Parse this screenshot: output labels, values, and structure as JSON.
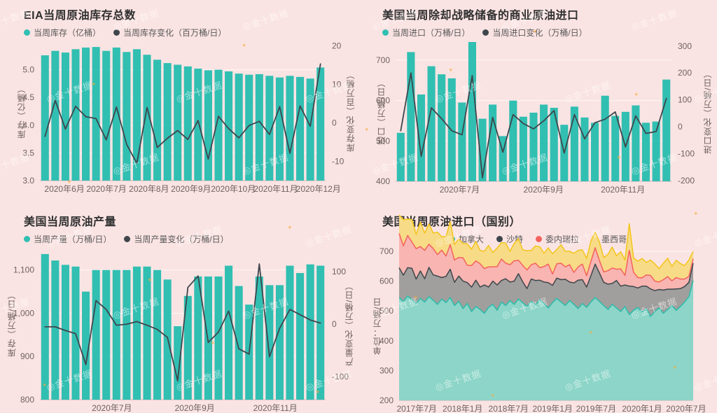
{
  "page": {
    "background": "#fae4e3",
    "watermark": {
      "logo": "◎",
      "text": "金十数据"
    }
  },
  "charts": [
    {
      "id": "eia-inventory",
      "title": "EIA当周原油库存总数",
      "legend": [
        {
          "label": "当周库存（亿桶）",
          "color": "#31bfb2"
        },
        {
          "label": "当周库存变化（百万桶/日）",
          "color": "#3e464c"
        }
      ],
      "chart_data": {
        "type": "bar+line",
        "bar_series": {
          "name": "当周库存（亿桶）",
          "values": [
            5.26,
            5.34,
            5.31,
            5.37,
            5.4,
            5.41,
            5.34,
            5.4,
            5.32,
            5.37,
            5.27,
            5.18,
            5.12,
            5.09,
            5.06,
            5.02,
            4.99,
            5.0,
            4.97,
            4.93,
            4.91,
            4.92,
            4.89,
            4.86,
            4.89,
            4.87,
            4.84,
            5.04
          ]
        },
        "line_series": {
          "name": "当周库存变化（百万桶/日）",
          "values": [
            -3.5,
            5.8,
            -1.6,
            4.3,
            1.6,
            1.1,
            -4.4,
            4.1,
            -5.6,
            -10.5,
            4.0,
            -6.4,
            -4.0,
            -2.0,
            -4.3,
            0.6,
            -9.4,
            1.7,
            -1.5,
            -3.9,
            -0.7,
            0.4,
            -3.0,
            4.2,
            -7.9,
            4.4,
            -0.9,
            15.3
          ]
        },
        "ylim": [
          3.0,
          5.5
        ],
        "yticks": [
          [
            3.0,
            "3.0"
          ],
          [
            3.5,
            "3.5"
          ],
          [
            4.0,
            "4.0"
          ],
          [
            4.5,
            "4.5"
          ],
          [
            5.0,
            "5.0"
          ]
        ],
        "y2lim": [
          -15,
          21
        ],
        "y2ticks": [
          [
            -10,
            "-10"
          ],
          [
            0,
            "0"
          ],
          [
            10,
            "10"
          ],
          [
            20,
            "20"
          ]
        ],
        "yaxis_title": "库存（亿桶）",
        "y2axis_title": "库存变化（百万桶）",
        "x_labels": [
          [
            0.086,
            "2020年6月"
          ],
          [
            0.233,
            "2020年7月"
          ],
          [
            0.382,
            "2020年8月"
          ],
          [
            0.529,
            "2020年9月"
          ],
          [
            0.677,
            "2020年10月"
          ],
          [
            0.826,
            "2020年11月"
          ],
          [
            0.975,
            "2020年12月"
          ]
        ]
      }
    },
    {
      "id": "commercial-imports",
      "title": "美国当周除却战略储备的商业原油进口",
      "legend": [
        {
          "label": "当周进口（万桶/日）",
          "color": "#31bfb2"
        },
        {
          "label": "当周进口变化（万桶/日）",
          "color": "#3e464c"
        }
      ],
      "chart_data": {
        "type": "bar+line",
        "bar_series": {
          "name": "当周进口（万桶/日）",
          "values": [
            520,
            720,
            615,
            685,
            665,
            655,
            595,
            745,
            555,
            590,
            512,
            600,
            560,
            570,
            590,
            582,
            540,
            585,
            558,
            545,
            612,
            562,
            572,
            588,
            545,
            548,
            652
          ]
        },
        "line_series": {
          "name": "当周进口变化（万桶/日）",
          "values": [
            -15,
            200,
            -110,
            70,
            30,
            -15,
            -30,
            190,
            -190,
            35,
            -95,
            45,
            12,
            -8,
            22,
            60,
            -98,
            45,
            -45,
            15,
            28,
            55,
            -75,
            40,
            -25,
            -18,
            105
          ]
        },
        "ylim": [
          400,
          745
        ],
        "yticks": [
          [
            400,
            "400"
          ],
          [
            500,
            "500"
          ],
          [
            600,
            "600"
          ],
          [
            700,
            "700"
          ]
        ],
        "y2lim": [
          -203,
          315
        ],
        "y2ticks": [
          [
            -200,
            "-200"
          ],
          [
            -100,
            "-100"
          ],
          [
            0,
            "0"
          ],
          [
            100,
            "100"
          ],
          [
            200,
            "200"
          ],
          [
            300,
            "300"
          ]
        ],
        "yaxis_title": "进口（万桶/日）",
        "y2axis_title": "进口变化（万桶/日）",
        "x_labels": [
          [
            0.232,
            "2020年7月"
          ],
          [
            0.536,
            "2020年9月"
          ],
          [
            0.824,
            "2020年11月"
          ]
        ]
      }
    },
    {
      "id": "crude-production",
      "title": "美国当周原油产量",
      "legend": [
        {
          "label": "当周产量（万桶/日）",
          "color": "#31bfb2"
        },
        {
          "label": "当周产量变化（万桶/日）",
          "color": "#3e464c"
        }
      ],
      "chart_data": {
        "type": "bar+line",
        "bar_series": {
          "name": "当周产量（万桶/日）",
          "values": [
            1137,
            1122,
            1112,
            1108,
            1050,
            1100,
            1100,
            1100,
            1100,
            1108,
            1108,
            1100,
            1078,
            970,
            1040,
            1085,
            1085,
            1085,
            1110,
            1063,
            1020,
            1085,
            1065,
            1065,
            1110,
            1093,
            1113,
            1110
          ]
        },
        "line_series": {
          "name": "当周产量变化（万桶/日）",
          "values": [
            -5,
            -5,
            -12,
            -18,
            -77,
            45,
            28,
            -2,
            0,
            5,
            -2,
            -10,
            -25,
            -108,
            70,
            92,
            -35,
            -15,
            25,
            -47,
            -57,
            115,
            -62,
            -8,
            28,
            18,
            8,
            2
          ]
        },
        "ylim": [
          800,
          1153
        ],
        "yticks": [
          [
            800,
            "800"
          ],
          [
            900,
            "900"
          ],
          [
            1000,
            "1,000"
          ],
          [
            1100,
            "1,100"
          ]
        ],
        "y2lim": [
          -144,
          147
        ],
        "y2ticks": [
          [
            -100,
            "-100"
          ],
          [
            0,
            "0"
          ],
          [
            100,
            "100"
          ]
        ],
        "yaxis_title": "库存（万桶/日）",
        "y2axis_title": "产量变化（万桶/日）",
        "x_labels": [
          [
            0.252,
            "2020年7月"
          ],
          [
            0.542,
            "2020年9月"
          ],
          [
            0.824,
            "2020年11月"
          ]
        ]
      }
    },
    {
      "id": "imports-by-country",
      "title": "美国当周原油进口（国别）",
      "legend": [
        {
          "label": "加拿大",
          "color": "#31bfb2"
        },
        {
          "label": "沙特",
          "color": "#3e464c"
        },
        {
          "label": "委内瑞拉",
          "color": "#f4625d"
        },
        {
          "label": "墨西哥",
          "color": "#f3c51b"
        }
      ],
      "chart_data": {
        "type": "stacked-area",
        "series": [
          {
            "name": "加拿大",
            "line": "#2bbcab",
            "fill": "#8cd5c8",
            "values": [
              345,
              332,
              350,
              338,
              325,
              342,
              330,
              348,
              336,
              322,
              340,
              328,
              345,
              318,
              332,
              308,
              325,
              298,
              315,
              305,
              292,
              312,
              322,
              302,
              330,
              318,
              335,
              322,
              340,
              328,
              315,
              332,
              320,
              338,
              325,
              310,
              328,
              342,
              330,
              318,
              335,
              322,
              308,
              325,
              312,
              330,
              345,
              332,
              318,
              305,
              322,
              310,
              298,
              315,
              288,
              302,
              312,
              295,
              308,
              282,
              298,
              310,
              292,
              305,
              318,
              302,
              315,
              330,
              348,
              402
            ]
          },
          {
            "name": "沙特",
            "line": "#3e464c",
            "fill": "#a19f9d",
            "values": [
              100,
              88,
              95,
              105,
              82,
              92,
              78,
              98,
              85,
              95,
              72,
              88,
              95,
              78,
              85,
              92,
              70,
              82,
              88,
              75,
              95,
              68,
              78,
              85,
              72,
              90,
              62,
              78,
              85,
              70,
              60,
              75,
              82,
              65,
              72,
              85,
              58,
              68,
              75,
              88,
              62,
              72,
              95,
              80,
              68,
              88,
              112,
              95,
              78,
              85,
              70,
              92,
              85,
              72,
              95,
              80,
              65,
              88,
              75,
              92,
              70,
              62,
              78,
              68,
              55,
              72,
              60,
              52,
              48,
              58
            ]
          },
          {
            "name": "委内瑞拉",
            "line": "#f4625d",
            "fill": "#f8b5b1",
            "values": [
              115,
              98,
              108,
              88,
              102,
              82,
              95,
              78,
              88,
              72,
              92,
              68,
              82,
              75,
              62,
              78,
              58,
              72,
              65,
              78,
              55,
              68,
              48,
              62,
              72,
              52,
              58,
              68,
              45,
              55,
              62,
              48,
              58,
              42,
              52,
              62,
              38,
              48,
              55,
              42,
              58,
              35,
              45,
              52,
              38,
              48,
              55,
              42,
              35,
              45,
              52,
              38,
              58,
              32,
              120,
              48,
              35,
              28,
              38,
              45,
              32,
              25,
              35,
              42,
              28,
              38,
              32,
              25,
              20,
              15
            ]
          },
          {
            "name": "墨西哥",
            "line": "#f3c51b",
            "fill": "#f7db86",
            "values": [
              62,
              88,
              55,
              75,
              48,
              82,
              58,
              68,
              52,
              75,
              45,
              65,
              78,
              52,
              62,
              48,
              72,
              55,
              65,
              45,
              58,
              72,
              48,
              62,
              55,
              68,
              45,
              58,
              72,
              52,
              65,
              48,
              58,
              70,
              45,
              55,
              68,
              48,
              62,
              52,
              45,
              65,
              55,
              48,
              58,
              68,
              52,
              62,
              48,
              55,
              70,
              45,
              58,
              52,
              90,
              48,
              55,
              65,
              42,
              52,
              58,
              45,
              55,
              62,
              48,
              58,
              52,
              45,
              55,
              25
            ]
          }
        ],
        "ylim": [
          200,
          700
        ],
        "yticks": [
          [
            200,
            "200"
          ],
          [
            300,
            "300"
          ],
          [
            400,
            "400"
          ],
          [
            500,
            "500"
          ],
          [
            600,
            "600"
          ],
          [
            700,
            "700"
          ]
        ],
        "yaxis_title": "单位：万桶/日",
        "x_labels": [
          [
            0.06,
            "2017年7月"
          ],
          [
            0.216,
            "2018年1月"
          ],
          [
            0.372,
            "2018年7月"
          ],
          [
            0.522,
            "2019年1月"
          ],
          [
            0.67,
            "2019年7月"
          ],
          [
            0.826,
            "2020年1月"
          ],
          [
            0.976,
            "2020年7月"
          ]
        ]
      }
    }
  ]
}
